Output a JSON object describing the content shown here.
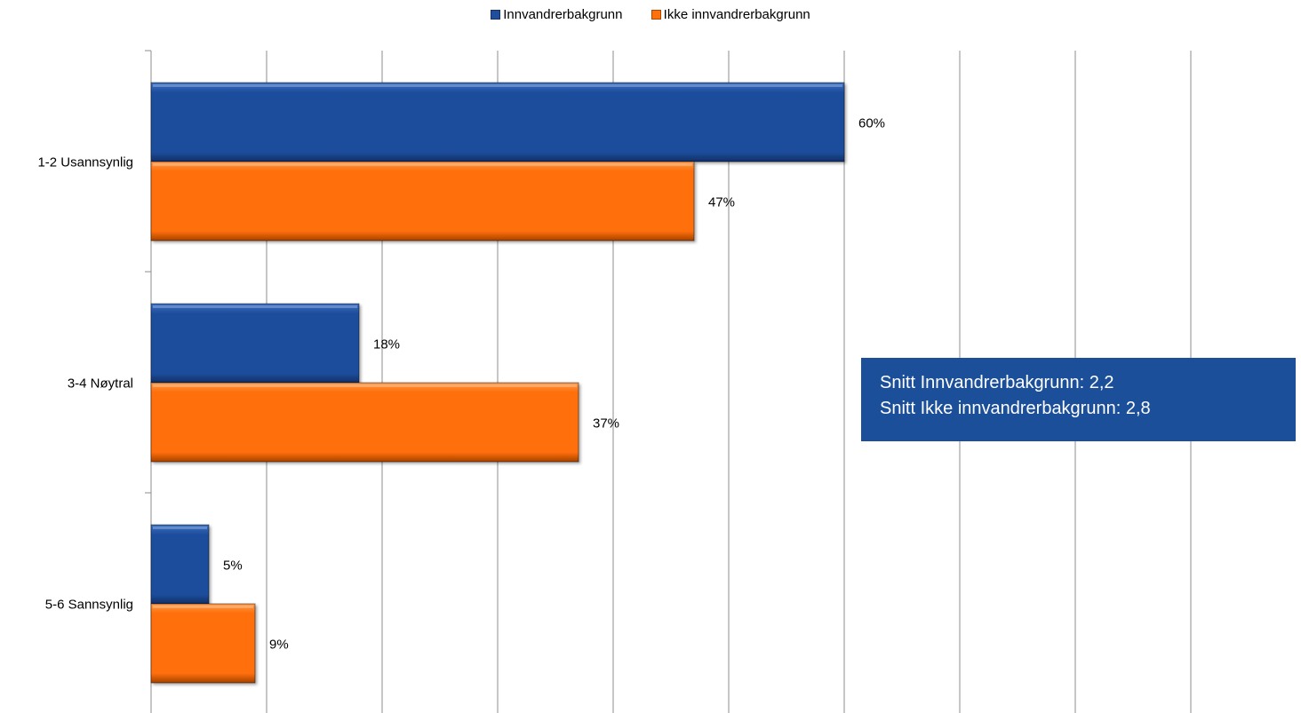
{
  "legend": {
    "items": [
      {
        "label": "Innvandrerbakgrunn",
        "color": "#1F4E9C"
      },
      {
        "label": "Ikke innvandrerbakgrunn",
        "color": "#FF6F0A"
      }
    ]
  },
  "note": {
    "line1": "Snitt Innvandrerbakgrunn: 2,2",
    "line2": "Snitt Ikke innvandrerbakgrunn: 2,8",
    "background": "#1B4F99"
  },
  "chart_data": {
    "type": "bar",
    "orientation": "horizontal",
    "categories": [
      "1-2 Usannsynlig",
      "3-4 Nøytral",
      "5-6 Sannsynlig"
    ],
    "series": [
      {
        "name": "Innvandrerbakgrunn",
        "values": [
          60,
          18,
          5
        ],
        "labels": [
          "60%",
          "18%",
          "5%"
        ],
        "color": "#1F4E9C"
      },
      {
        "name": "Ikke innvandrerbakgrunn",
        "values": [
          47,
          37,
          9
        ],
        "labels": [
          "47%",
          "37%",
          "9%"
        ],
        "color": "#FF6F0A"
      }
    ],
    "xlim": [
      0,
      100
    ],
    "grid": true,
    "legend_position": "top"
  }
}
